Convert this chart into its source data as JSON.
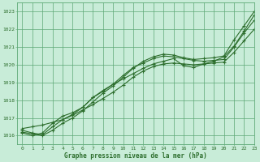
{
  "title": "Graphe pression niveau de la mer (hPa)",
  "background_color": "#c8ecd8",
  "grid_color": "#5da875",
  "line_color": "#2d6e2d",
  "xlim": [
    -0.5,
    23
  ],
  "ylim": [
    1015.5,
    1023.5
  ],
  "yticks": [
    1016,
    1017,
    1018,
    1019,
    1020,
    1021,
    1022,
    1023
  ],
  "xticks": [
    0,
    1,
    2,
    3,
    4,
    5,
    6,
    7,
    8,
    9,
    10,
    11,
    12,
    13,
    14,
    15,
    16,
    17,
    18,
    19,
    20,
    21,
    22,
    23
  ],
  "series1": [
    1016.2,
    1016.1,
    1016.0,
    1016.3,
    1016.7,
    1017.0,
    1017.4,
    1017.9,
    1018.4,
    1018.8,
    1019.3,
    1019.8,
    1020.2,
    1020.45,
    1020.6,
    1020.55,
    1020.4,
    1020.3,
    1020.35,
    1020.4,
    1020.5,
    1021.4,
    1022.2,
    1023.0
  ],
  "series2": [
    1016.3,
    1016.15,
    1016.05,
    1016.5,
    1016.9,
    1017.2,
    1017.6,
    1018.15,
    1018.5,
    1018.9,
    1019.4,
    1019.85,
    1020.1,
    1020.35,
    1020.5,
    1020.45,
    1020.35,
    1020.25,
    1020.2,
    1020.25,
    1020.3,
    1021.0,
    1021.8,
    1022.5
  ],
  "series3": [
    1016.4,
    1016.5,
    1016.6,
    1016.75,
    1016.9,
    1017.15,
    1017.45,
    1017.75,
    1018.1,
    1018.45,
    1018.85,
    1019.3,
    1019.65,
    1019.9,
    1020.05,
    1020.1,
    1020.05,
    1020.0,
    1020.05,
    1020.1,
    1020.15,
    1020.7,
    1021.35,
    1022.0
  ],
  "series4": [
    1016.15,
    1016.0,
    1016.15,
    1016.7,
    1017.1,
    1017.3,
    1017.6,
    1018.15,
    1018.55,
    1018.9,
    1019.2,
    1019.5,
    1019.8,
    1020.05,
    1020.2,
    1020.35,
    1019.95,
    1019.85,
    1020.05,
    1020.2,
    1020.45,
    1021.05,
    1021.9,
    1022.8
  ]
}
